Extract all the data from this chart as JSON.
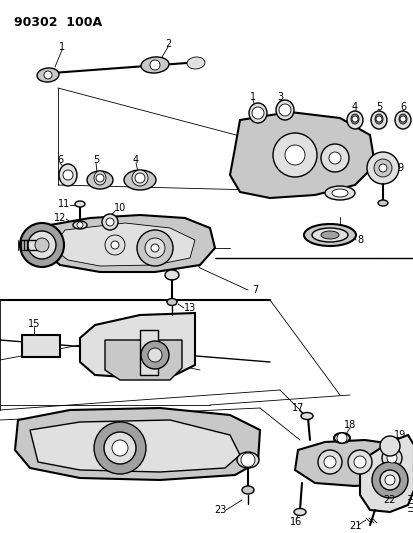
{
  "title": "90302  100A",
  "bg_color": "#ffffff",
  "lc": "#000000",
  "gray1": "#c8c8c8",
  "gray2": "#e0e0e0",
  "gray3": "#a0a0a0",
  "figsize": [
    4.14,
    5.33
  ],
  "dpi": 100
}
